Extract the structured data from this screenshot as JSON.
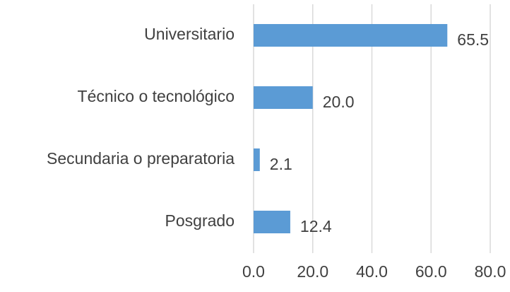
{
  "chart_data": {
    "type": "bar",
    "orientation": "horizontal",
    "categories": [
      "Universitario",
      "Técnico o tecnológico",
      "Secundaria o preparatoria",
      "Posgrado"
    ],
    "values": [
      65.5,
      20.0,
      2.1,
      12.4
    ],
    "value_labels": [
      "65.5",
      "20.0",
      "2.1",
      "12.4"
    ],
    "color": "#5b9bd5",
    "xlim": [
      0,
      80
    ],
    "xticks": [
      {
        "value": 0,
        "label": "0.0"
      },
      {
        "value": 20,
        "label": "20.0"
      },
      {
        "value": 40,
        "label": "40.0"
      },
      {
        "value": 60,
        "label": "60.0"
      },
      {
        "value": 80,
        "label": "80.0"
      }
    ],
    "grid": true
  }
}
